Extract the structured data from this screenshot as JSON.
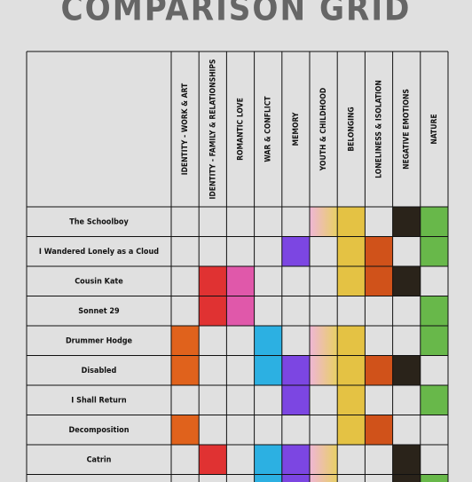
{
  "title": "COMPARISON GRID",
  "columns": [
    {
      "name": "IDENTITY - WORK & ART",
      "color": "#e0621c"
    },
    {
      "name": "IDENTITY - FAMILY & RELATIONSHIPS",
      "color": "#e03232"
    },
    {
      "name": "ROMANTIC LOVE",
      "color": "#e058aa"
    },
    {
      "name": "WAR & CONFLICT",
      "color": "#2cb0e2"
    },
    {
      "name": "MEMORY",
      "color": "#7c46e2"
    },
    {
      "name": "YOUTH & CHILDHOOD",
      "color": [
        "#efb6d6",
        "#e8d064"
      ]
    },
    {
      "name": "BELONGING",
      "color": "#e4c244"
    },
    {
      "name": "LONELINESS & ISOLATION",
      "color": "#d0521a"
    },
    {
      "name": "NEGATIVE EMOTIONS",
      "color": "#2a231a"
    },
    {
      "name": "NATURE",
      "color": "#68b84a"
    }
  ],
  "rows": [
    {
      "label": "The Schoolboy",
      "cells": [
        false,
        false,
        false,
        false,
        false,
        true,
        true,
        false,
        true,
        true
      ]
    },
    {
      "label": "I Wandered Lonely as a Cloud",
      "cells": [
        false,
        false,
        false,
        false,
        true,
        false,
        true,
        true,
        false,
        true
      ]
    },
    {
      "label": "Cousin Kate",
      "cells": [
        false,
        true,
        true,
        false,
        false,
        false,
        true,
        true,
        true,
        false
      ]
    },
    {
      "label": "Sonnet 29",
      "cells": [
        false,
        true,
        true,
        false,
        false,
        false,
        false,
        false,
        false,
        true
      ]
    },
    {
      "label": "Drummer Hodge",
      "cells": [
        true,
        false,
        false,
        true,
        false,
        true,
        true,
        false,
        false,
        true
      ]
    },
    {
      "label": "Disabled",
      "cells": [
        true,
        false,
        false,
        true,
        true,
        true,
        true,
        true,
        true,
        false
      ]
    },
    {
      "label": "I Shall Return",
      "cells": [
        false,
        false,
        false,
        false,
        true,
        false,
        true,
        false,
        false,
        true
      ]
    },
    {
      "label": "Decomposition",
      "cells": [
        true,
        false,
        false,
        false,
        false,
        false,
        true,
        true,
        false,
        false
      ]
    },
    {
      "label": "Catrin",
      "cells": [
        false,
        true,
        false,
        true,
        true,
        true,
        false,
        false,
        true,
        false
      ]
    },
    {
      "cells": [
        false,
        false,
        false,
        true,
        true,
        true,
        false,
        false,
        true,
        true
      ]
    }
  ]
}
